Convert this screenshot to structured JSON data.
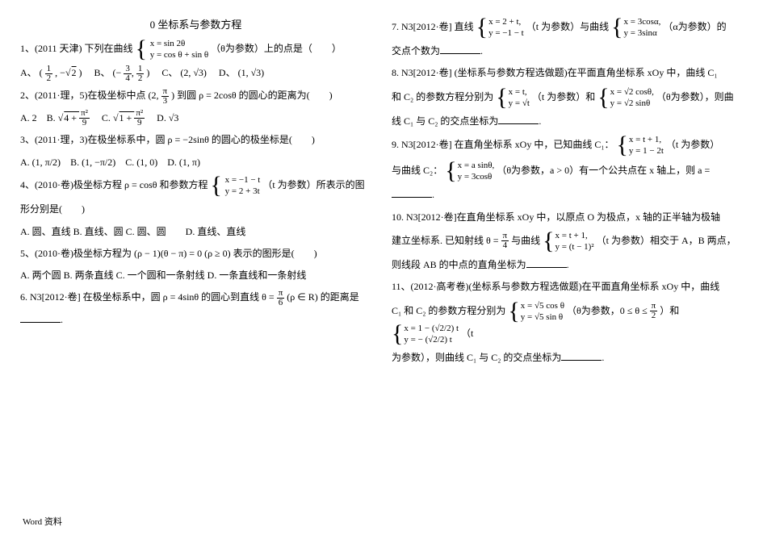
{
  "title": "0 坐标系与参数方程",
  "footer": "Word  资料",
  "left": {
    "q1_pre": "1、(2011 天津) 下列在曲线 ",
    "q1_eq1": "x = sin 2θ",
    "q1_eq2": "y = cos θ + sin θ",
    "q1_post": "（θ为参数）上的点是（　　）",
    "q1A_pre": "A、 (",
    "q1A_num": "1",
    "q1A_den": "2",
    "q1A_mid": " , −",
    "q1A_rt": "2",
    "q1A_post": ")",
    "q1B_pre": "B、 (−",
    "q1B_n1": "3",
    "q1B_d1": "4",
    "q1B_n2": "1",
    "q1B_d2": "2",
    "q1B_post": ")",
    "q1C": "C、 (2, √3)",
    "q1D": "D、 (1, √3)",
    "q2_pre": "2、(2011·理，5)在极坐标中点 (2, ",
    "q2_num": "π",
    "q2_den": "3",
    "q2_post": ") 到圆 ρ = 2cosθ 的圆心的距离为(　　)",
    "q2A": "A. 2",
    "q2B_pre": "B. ",
    "q2B_in": "4 + ",
    "q2B_n": "π²",
    "q2B_d": "9",
    "q2C_pre": "C. ",
    "q2C_in": "1 + ",
    "q2C_n": "π²",
    "q2C_d": "9",
    "q2D": "D. √3",
    "q3": "3、(2011·理，3)在极坐标系中，圆 ρ = −2sinθ 的圆心的极坐标是(　　)",
    "q3A": "A. (1, π/2)",
    "q3B": "B. (1, −π/2)",
    "q3C": "C. (1, 0)",
    "q3D": "D. (1, π)",
    "q4_pre": "4、(2010·卷)极坐标方程 ρ = cosθ 和参数方程 ",
    "q4_e1": "x = −1 − t",
    "q4_e2": "y = 2 + 3t",
    "q4_post": "（t 为参数）所表示的图",
    "q4_line2": "形分别是(　　)",
    "q4A": "A. 圆、直线  B. 直线、圆  C. 圆、圆　　D. 直线、直线",
    "q5": "5、(2010·卷)极坐标方程为 (ρ − 1)(θ − π) = 0 (ρ ≥ 0) 表示的图形是(　　)",
    "q5A": "A. 两个圆  B. 两条直线  C. 一个圆和一条射线  D. 一条直线和一条射线",
    "q6_pre": "6. N3[2012·卷]  在极坐标系中，圆 ρ = 4sinθ 的圆心到直线 θ = ",
    "q6_num": "π",
    "q6_den": "6",
    "q6_post": " (ρ ∈ R) 的距离是"
  },
  "right": {
    "q7_pre": "7. N3[2012·卷]  直线 ",
    "q7_e1": "x = 2 + t,",
    "q7_e2": "y = −1 − t",
    "q7_mid": "（t 为参数）与曲线 ",
    "q7_e3": "x = 3cosα,",
    "q7_e4": "y = 3sinα",
    "q7_post": "（α为参数）的",
    "q7_l2": "交点个数为",
    "q8_pre": "8. N3[2012·卷]  (坐标系与参数方程选做题)在平面直角坐标系 xOy 中，曲线 C₁",
    "q8_l2a": "和 C₂ 的参数方程分别为 ",
    "q8_e1": "x = t,",
    "q8_e2": "y = √t",
    "q8_mid": "（t 为参数）和 ",
    "q8_e3": "x = √2 cosθ,",
    "q8_e4": "y = √2 sinθ",
    "q8_post": "（θ为参数），则曲",
    "q8_l3": "线 C₁ 与 C₂ 的交点坐标为",
    "q9_pre": "9. N3[2012·卷]  在直角坐标系 xOy 中，已知曲线 C₁：",
    "q9_e1": "x = t + 1,",
    "q9_e2": "y = 1 − 2t",
    "q9_post": "（t 为参数）",
    "q9_l2a": "与曲线 C₂：",
    "q9_e3": "x = a sinθ,",
    "q9_e4": "y = 3cosθ",
    "q9_l2b": "（θ为参数，a > 0）有一个公共点在 x 轴上，则 a =",
    "q10_pre": "10. N3[2012·卷]在直角坐标系 xOy 中，以原点 O 为极点，x 轴的正半轴为极轴",
    "q10_l2a": "建立坐标系. 已知射线 θ = ",
    "q10_num": "π",
    "q10_den": "4",
    "q10_l2b": " 与曲线 ",
    "q10_e1": "x = t + 1,",
    "q10_e2": "y = (t − 1)²",
    "q10_l2c": "（t 为参数）相交于 A，B 两点，",
    "q10_l3": "则线段 AB 的中点的直角坐标为",
    "q11_pre": "11、(2012·高考卷)(坐标系与参数方程选做题)在平面直角坐标系 xOy 中，曲线",
    "q11_l2a": "C₁ 和 C₂ 的参数方程分别为 ",
    "q11_e1": "x = √5 cos θ",
    "q11_e2": "y = √5 sin θ",
    "q11_l2b": "（θ为参数，0 ≤ θ ≤ ",
    "q11_num": "π",
    "q11_den": "2",
    "q11_l2c": "）和 ",
    "q11_e3": "x = 1 − (√2/2) t",
    "q11_e4": "y = − (√2/2) t",
    "q11_l2d": "（t",
    "q11_l3": "为参数），则曲线 C₁ 与 C₂ 的交点坐标为"
  }
}
